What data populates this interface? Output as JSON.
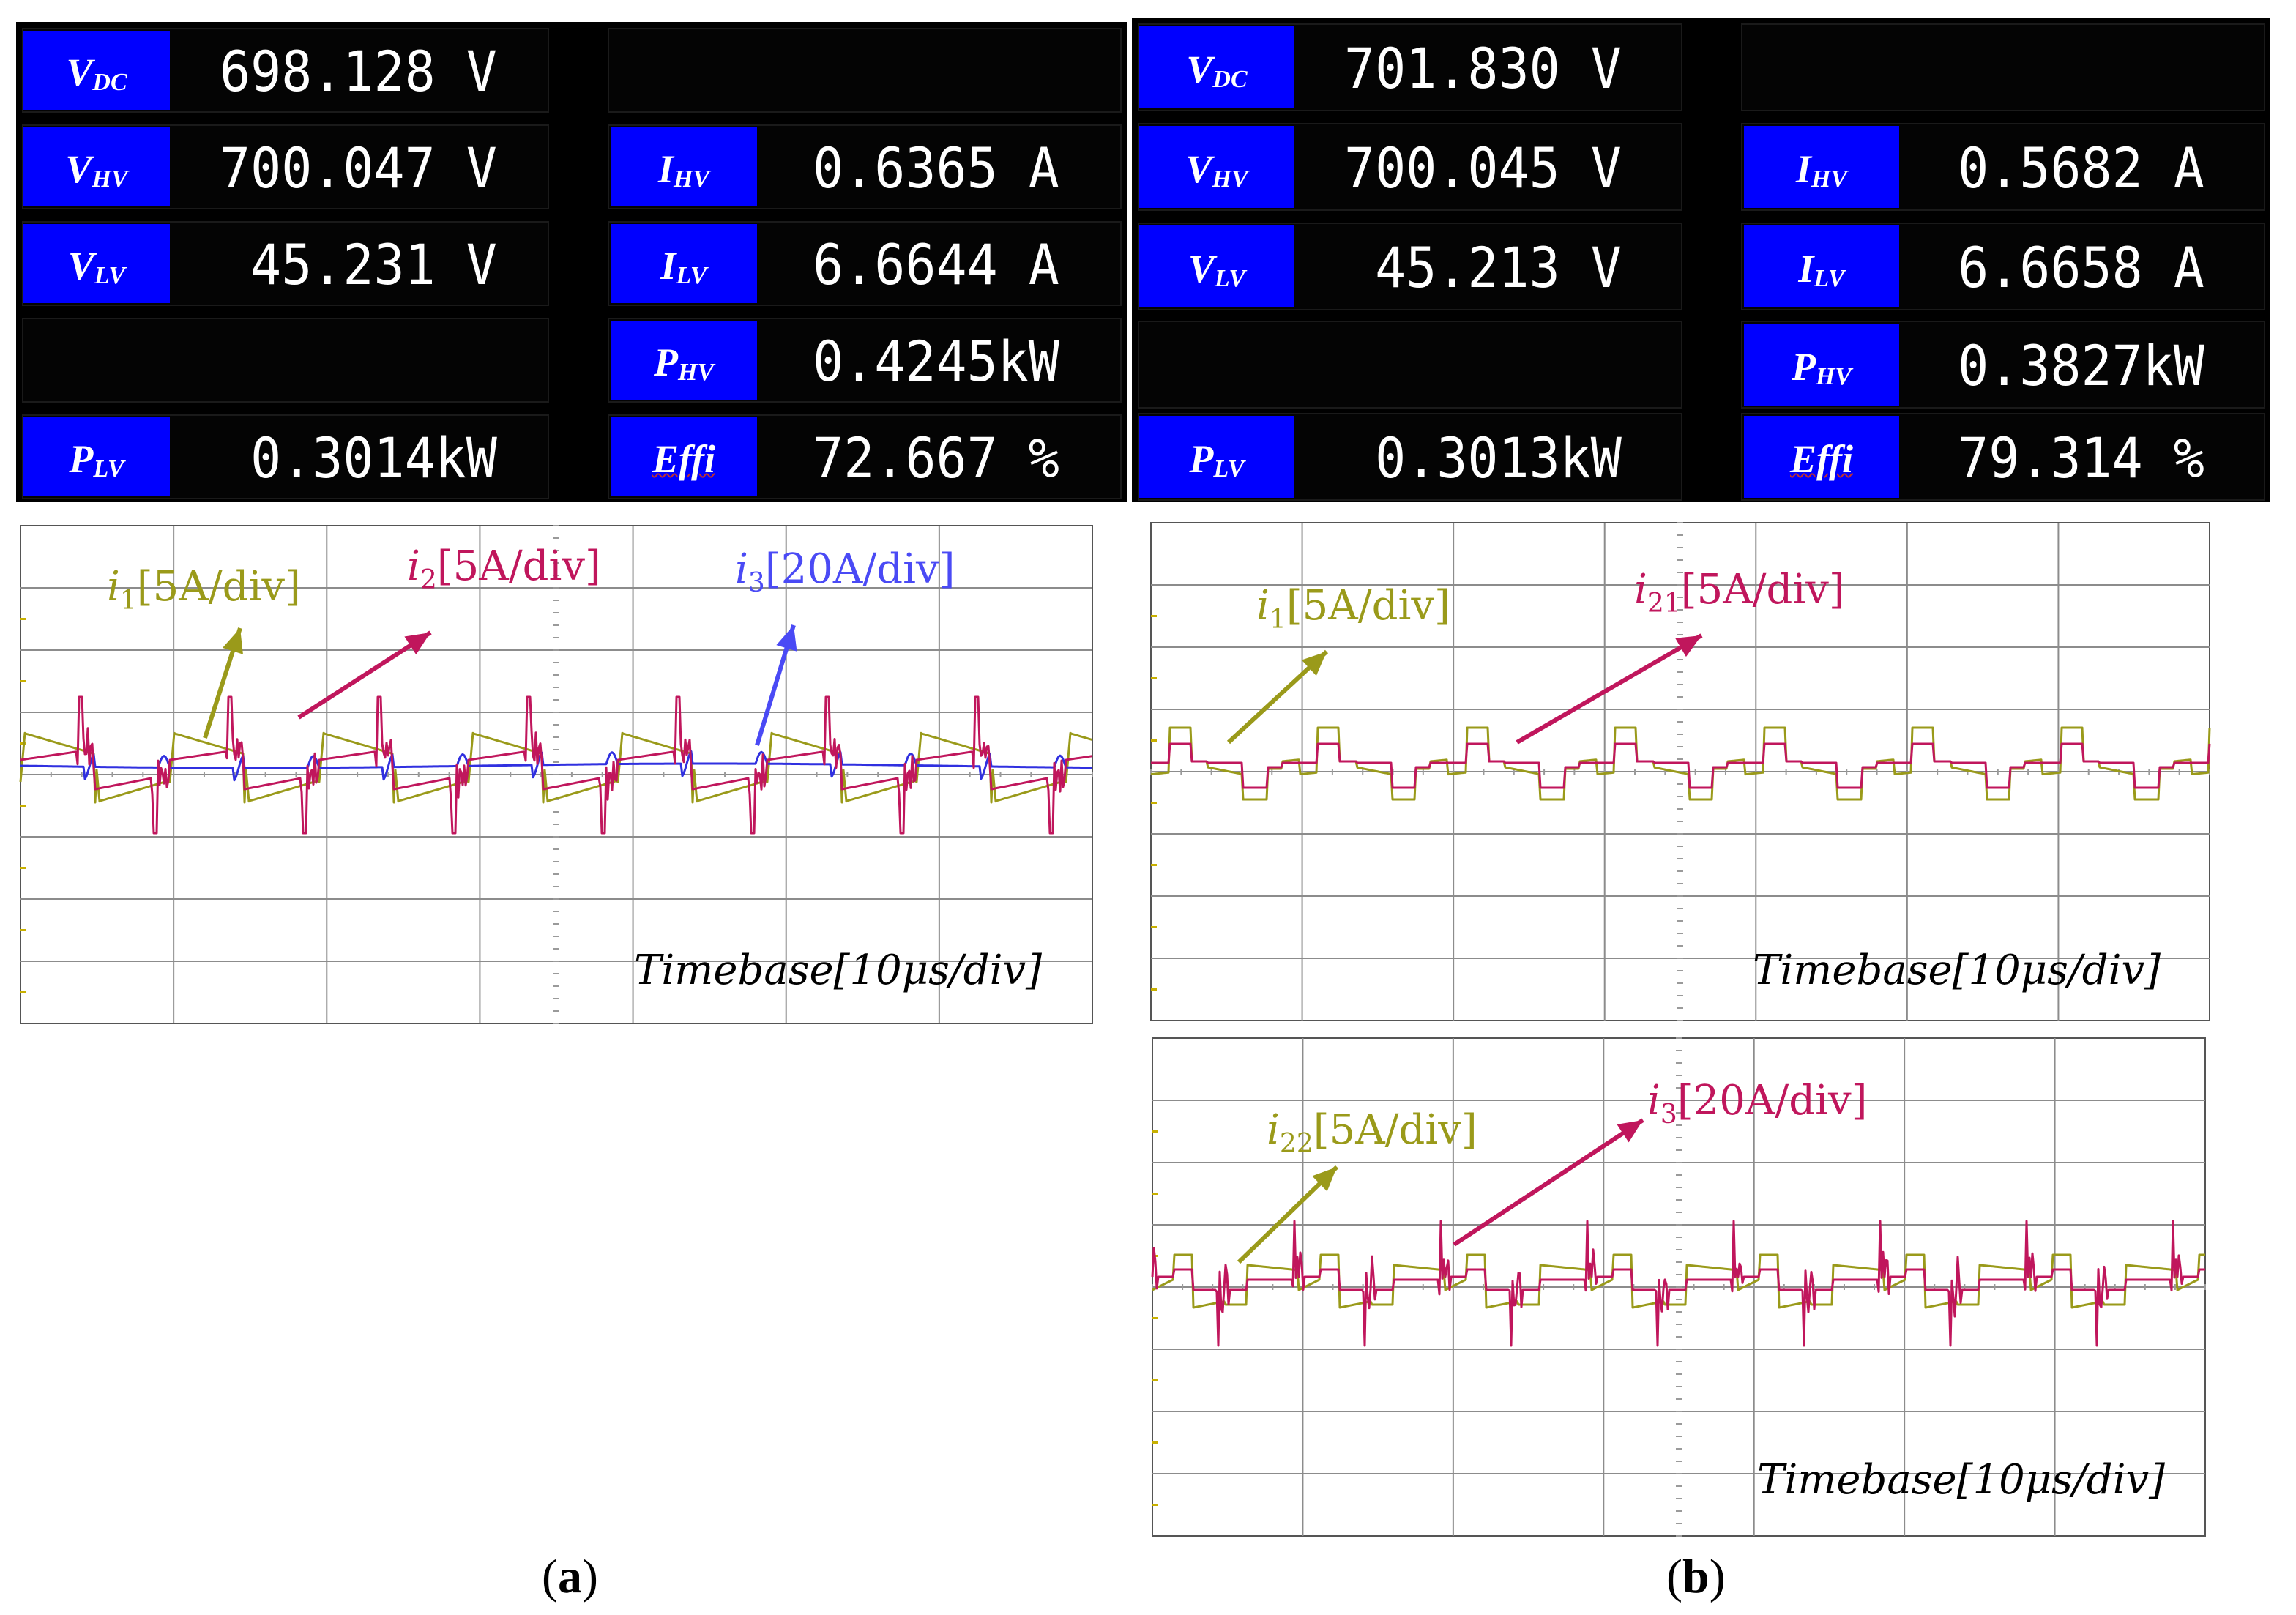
{
  "colors": {
    "yellow": "#9a9a1a",
    "magenta": "#c0165c",
    "blue": "#3030e0",
    "arrow_blue": "#4a4af5",
    "meter_blue": "#0000ff"
  },
  "panel_a": {
    "meter": {
      "v_dc": {
        "sym": "V",
        "sub": "DC",
        "value": "698.128 V"
      },
      "v_hv": {
        "sym": "V",
        "sub": "HV",
        "value": "700.047 V"
      },
      "v_lv": {
        "sym": "V",
        "sub": "LV",
        "value": " 45.231 V"
      },
      "p_lv": {
        "sym": "P",
        "sub": "LV",
        "value": " 0.3014kW"
      },
      "i_hv": {
        "sym": "I",
        "sub": "HV",
        "value": " 0.6365 A"
      },
      "i_lv": {
        "sym": "I",
        "sub": "LV",
        "value": " 6.6644 A"
      },
      "p_hv": {
        "sym": "P",
        "sub": "HV",
        "value": " 0.4245kW"
      },
      "effi": {
        "label": "Effi",
        "value": " 72.667 %"
      }
    },
    "scope": {
      "ann_i1": {
        "sym": "i",
        "sub": "1",
        "scale": "[5A/div]"
      },
      "ann_i2": {
        "sym": "i",
        "sub": "2",
        "scale": "[5A/div]"
      },
      "ann_i3": {
        "sym": "i",
        "sub": "3",
        "scale": "[20A/div]"
      },
      "timebase": "Timebase[10μs/div]"
    },
    "caption": {
      "open": "(",
      "letter": "a",
      "close": ")"
    }
  },
  "panel_b": {
    "meter": {
      "v_dc": {
        "sym": "V",
        "sub": "DC",
        "value": "701.830 V"
      },
      "v_hv": {
        "sym": "V",
        "sub": "HV",
        "value": "700.045 V"
      },
      "v_lv": {
        "sym": "V",
        "sub": "LV",
        "value": " 45.213 V"
      },
      "p_lv": {
        "sym": "P",
        "sub": "LV",
        "value": " 0.3013kW"
      },
      "i_hv": {
        "sym": "I",
        "sub": "HV",
        "value": " 0.5682 A"
      },
      "i_lv": {
        "sym": "I",
        "sub": "LV",
        "value": " 6.6658 A"
      },
      "p_hv": {
        "sym": "P",
        "sub": "HV",
        "value": " 0.3827kW"
      },
      "effi": {
        "label": "Effi",
        "value": " 79.314 %"
      }
    },
    "scope_top": {
      "ann_i1": {
        "sym": "i",
        "sub": "1",
        "scale": "[5A/div]"
      },
      "ann_i21": {
        "sym": "i",
        "sub": "21",
        "scale": "[5A/div]"
      },
      "timebase": "Timebase[10μs/div]"
    },
    "scope_bottom": {
      "ann_i22": {
        "sym": "i",
        "sub": "22",
        "scale": "[5A/div]"
      },
      "ann_i3": {
        "sym": "i",
        "sub": "3",
        "scale": "[20A/div]"
      },
      "timebase": "Timebase[10μs/div]"
    },
    "caption": {
      "open": "(",
      "letter": "b",
      "close": ")"
    }
  }
}
